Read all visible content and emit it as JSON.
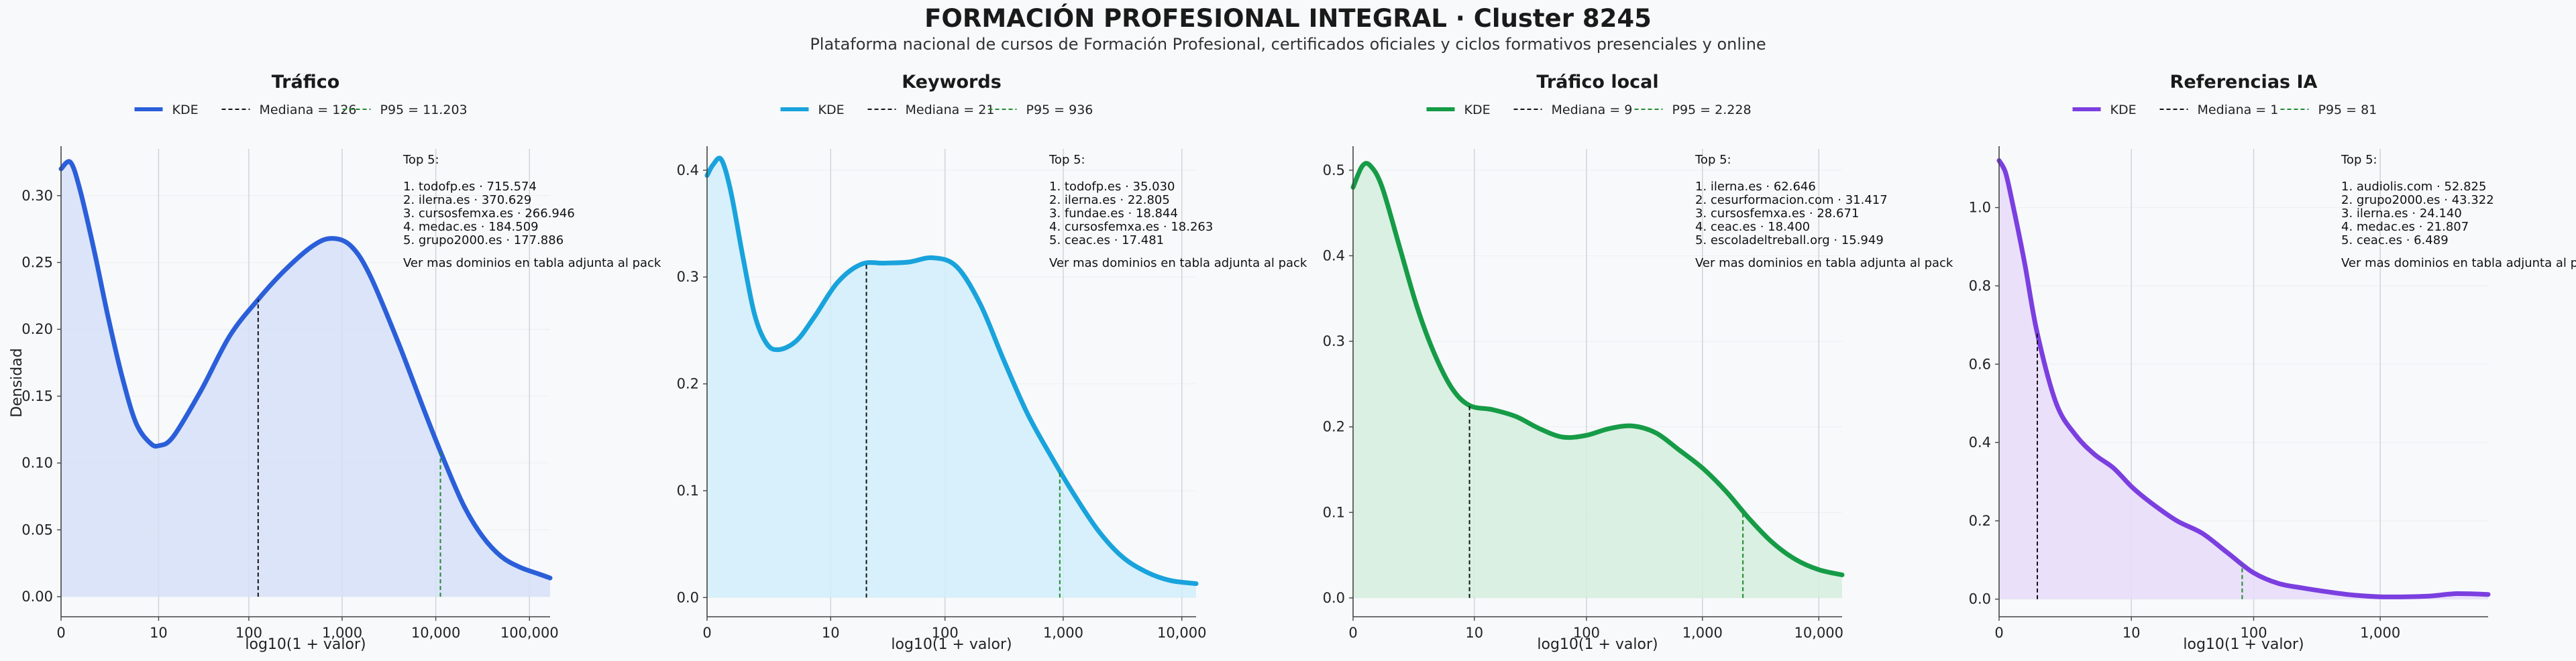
{
  "title": "FORMACIÓN PROFESIONAL INTEGRAL · Cluster 8245",
  "subtitle": "Plataforma nacional de cursos de Formación Profesional, certificados oficiales y ciclos formativos presenciales y online",
  "legend_kde": "KDE",
  "xlabel": "log10(1 + valor)",
  "ylabel": "Densidad",
  "note": "Ver mas dominios en tabla adjunta al pack",
  "top_label": "Top 5:",
  "colors": {
    "median_line": "#111111",
    "p95_line": "#1f8a2e",
    "grid": "#e3e5e8",
    "axis": "#444444"
  },
  "chart_data": [
    {
      "type": "area",
      "title": "Tráfico",
      "color": "#2b5fd9",
      "fill": "#d6e0f7",
      "legend": [
        "KDE",
        "Mediana = 126",
        "P95 = 11.203"
      ],
      "median": 126,
      "p95": 11203,
      "xlim_log": [
        0,
        5.22
      ],
      "xticks": [
        0,
        10,
        100,
        1000,
        10000,
        100000
      ],
      "xtick_labels": [
        "0",
        "10",
        "100",
        "1,000",
        "10,000",
        "100,000"
      ],
      "ylim": [
        -0.015,
        0.335
      ],
      "yticks": [
        0,
        0.05,
        0.1,
        0.15,
        0.2,
        0.25,
        0.3
      ],
      "ytick_labels": [
        "0.00",
        "0.05",
        "0.10",
        "0.15",
        "0.20",
        "0.25",
        "0.30"
      ],
      "x_log": [
        0,
        0.1,
        0.2,
        0.35,
        0.5,
        0.65,
        0.8,
        0.95,
        1.05,
        1.2,
        1.5,
        1.8,
        2.1,
        2.4,
        2.7,
        2.9,
        3.1,
        3.3,
        3.6,
        3.9,
        4.1,
        4.3,
        4.5,
        4.7,
        4.9,
        5.1,
        5.22
      ],
      "density": [
        0.32,
        0.325,
        0.305,
        0.26,
        0.21,
        0.165,
        0.13,
        0.115,
        0.113,
        0.12,
        0.155,
        0.195,
        0.222,
        0.245,
        0.263,
        0.268,
        0.262,
        0.24,
        0.19,
        0.135,
        0.1,
        0.068,
        0.045,
        0.03,
        0.022,
        0.017,
        0.014
      ],
      "top": [
        "1. todofp.es · 715.574",
        "2. ilerna.es · 370.629",
        "3. cursosfemxa.es · 266.946",
        "4. medac.es · 184.509",
        "5. grupo2000.es · 177.886"
      ]
    },
    {
      "type": "area",
      "title": "Keywords",
      "color": "#19a3dc",
      "fill": "#d1effa",
      "legend": [
        "KDE",
        "Mediana = 21",
        "P95 = 936"
      ],
      "median": 21,
      "p95": 936,
      "xlim_log": [
        0,
        4.12
      ],
      "xticks": [
        0,
        10,
        100,
        1000,
        10000
      ],
      "xtick_labels": [
        "0",
        "10",
        "100",
        "1,000",
        "10,000"
      ],
      "ylim": [
        -0.018,
        0.42
      ],
      "yticks": [
        0,
        0.1,
        0.2,
        0.3,
        0.4
      ],
      "ytick_labels": [
        "0.0",
        "0.1",
        "0.2",
        "0.3",
        "0.4"
      ],
      "x_log": [
        0,
        0.05,
        0.12,
        0.2,
        0.3,
        0.4,
        0.5,
        0.6,
        0.75,
        0.9,
        1.1,
        1.3,
        1.5,
        1.7,
        1.9,
        2.1,
        2.3,
        2.5,
        2.7,
        2.9,
        3.1,
        3.3,
        3.5,
        3.7,
        3.9,
        4.12
      ],
      "density": [
        0.395,
        0.405,
        0.41,
        0.38,
        0.32,
        0.265,
        0.238,
        0.232,
        0.24,
        0.262,
        0.295,
        0.312,
        0.313,
        0.314,
        0.318,
        0.31,
        0.275,
        0.222,
        0.172,
        0.132,
        0.095,
        0.062,
        0.038,
        0.024,
        0.016,
        0.013
      ],
      "top": [
        "1. todofp.es · 35.030",
        "2. ilerna.es · 22.805",
        "3. fundae.es · 18.844",
        "4. cursosfemxa.es · 18.263",
        "5. ceac.es · 17.481"
      ]
    },
    {
      "type": "area",
      "title": "Tráfico local",
      "color": "#169b47",
      "fill": "#d4eedd",
      "legend": [
        "KDE",
        "Mediana = 9",
        "P95 = 2.228"
      ],
      "median": 9,
      "p95": 2228,
      "xlim_log": [
        0,
        4.2
      ],
      "xticks": [
        0,
        10,
        100,
        1000,
        10000
      ],
      "xtick_labels": [
        "0",
        "10",
        "100",
        "1,000",
        "10,000"
      ],
      "ylim": [
        -0.022,
        0.525
      ],
      "yticks": [
        0,
        0.1,
        0.2,
        0.3,
        0.4,
        0.5
      ],
      "ytick_labels": [
        "0.0",
        "0.1",
        "0.2",
        "0.3",
        "0.4",
        "0.5"
      ],
      "x_log": [
        0,
        0.08,
        0.15,
        0.25,
        0.4,
        0.55,
        0.7,
        0.85,
        1.0,
        1.2,
        1.4,
        1.6,
        1.8,
        2.0,
        2.2,
        2.4,
        2.6,
        2.8,
        3.0,
        3.2,
        3.4,
        3.6,
        3.8,
        4.0,
        4.2
      ],
      "density": [
        0.48,
        0.505,
        0.505,
        0.48,
        0.41,
        0.34,
        0.285,
        0.245,
        0.225,
        0.22,
        0.212,
        0.198,
        0.188,
        0.19,
        0.198,
        0.201,
        0.193,
        0.173,
        0.152,
        0.125,
        0.093,
        0.065,
        0.045,
        0.033,
        0.027
      ],
      "top": [
        "1. ilerna.es · 62.646",
        "2. cesurformacion.com · 31.417",
        "3. cursosfemxa.es · 28.671",
        "4. ceac.es · 18.400",
        "5. escoladeltreball.org · 15.949"
      ]
    },
    {
      "type": "area",
      "title": "Referencias IA",
      "color": "#7b3fe0",
      "fill": "#e7dcf9",
      "legend": [
        "KDE",
        "Mediana = 1",
        "P95 = 81"
      ],
      "median": 1,
      "p95": 81,
      "xlim_log": [
        0,
        3.85
      ],
      "xticks": [
        0,
        10,
        100,
        1000
      ],
      "xtick_labels": [
        "0",
        "10",
        "100",
        "1,000"
      ],
      "ylim": [
        -0.045,
        1.15
      ],
      "yticks": [
        0,
        0.2,
        0.4,
        0.6,
        0.8,
        1.0
      ],
      "ytick_labels": [
        "0.0",
        "0.2",
        "0.4",
        "0.6",
        "0.8",
        "1.0"
      ],
      "x_log": [
        0,
        0.05,
        0.1,
        0.2,
        0.3,
        0.45,
        0.6,
        0.75,
        0.9,
        1.05,
        1.2,
        1.4,
        1.6,
        1.8,
        2.0,
        2.2,
        2.4,
        2.6,
        2.8,
        3.0,
        3.2,
        3.4,
        3.6,
        3.85
      ],
      "density": [
        1.12,
        1.09,
        1.02,
        0.86,
        0.68,
        0.5,
        0.42,
        0.37,
        0.335,
        0.285,
        0.245,
        0.2,
        0.168,
        0.118,
        0.068,
        0.04,
        0.028,
        0.018,
        0.01,
        0.006,
        0.006,
        0.008,
        0.014,
        0.012
      ],
      "top": [
        "1. audiolis.com · 52.825",
        "2. grupo2000.es · 43.322",
        "3. ilerna.es · 24.140",
        "4. medac.es · 21.807",
        "5. ceac.es · 6.489"
      ]
    }
  ]
}
